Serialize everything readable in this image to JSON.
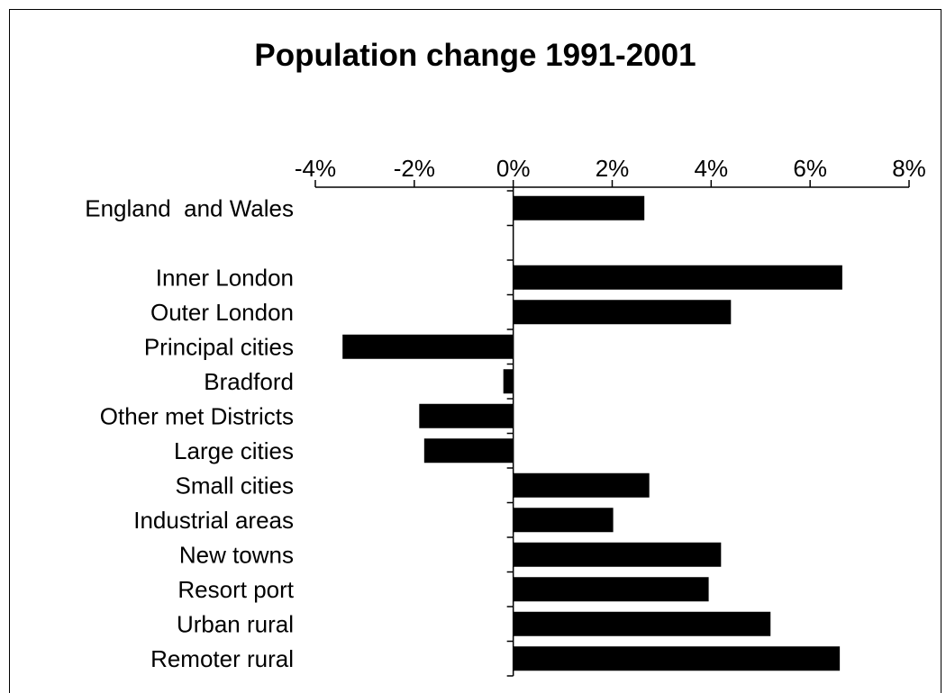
{
  "chart_data": {
    "type": "bar",
    "orientation": "horizontal",
    "title": "Population change 1991-2001",
    "xlabel": "",
    "ylabel": "",
    "xlim": [
      -0.04,
      0.08
    ],
    "xticks": [
      -0.04,
      -0.02,
      0,
      0.02,
      0.04,
      0.06,
      0.08
    ],
    "xtick_labels": [
      "-4%",
      "-2%",
      "0%",
      "2%",
      "4%",
      "6%",
      "8%"
    ],
    "axis_position": "top",
    "grid": false,
    "legend": "none",
    "bar_color": "#000000",
    "categories": [
      "England  and Wales",
      "",
      "Inner London",
      "Outer London",
      "Principal cities",
      "Bradford",
      "Other met Districts",
      "Large cities",
      "Small cities",
      "Industrial areas",
      "New towns",
      "Resort port",
      "Urban rural",
      "Remoter rural"
    ],
    "values": [
      0.0265,
      null,
      0.0665,
      0.044,
      -0.0345,
      -0.002,
      -0.019,
      -0.018,
      0.0275,
      0.0202,
      0.042,
      0.0395,
      0.052,
      0.066
    ]
  }
}
